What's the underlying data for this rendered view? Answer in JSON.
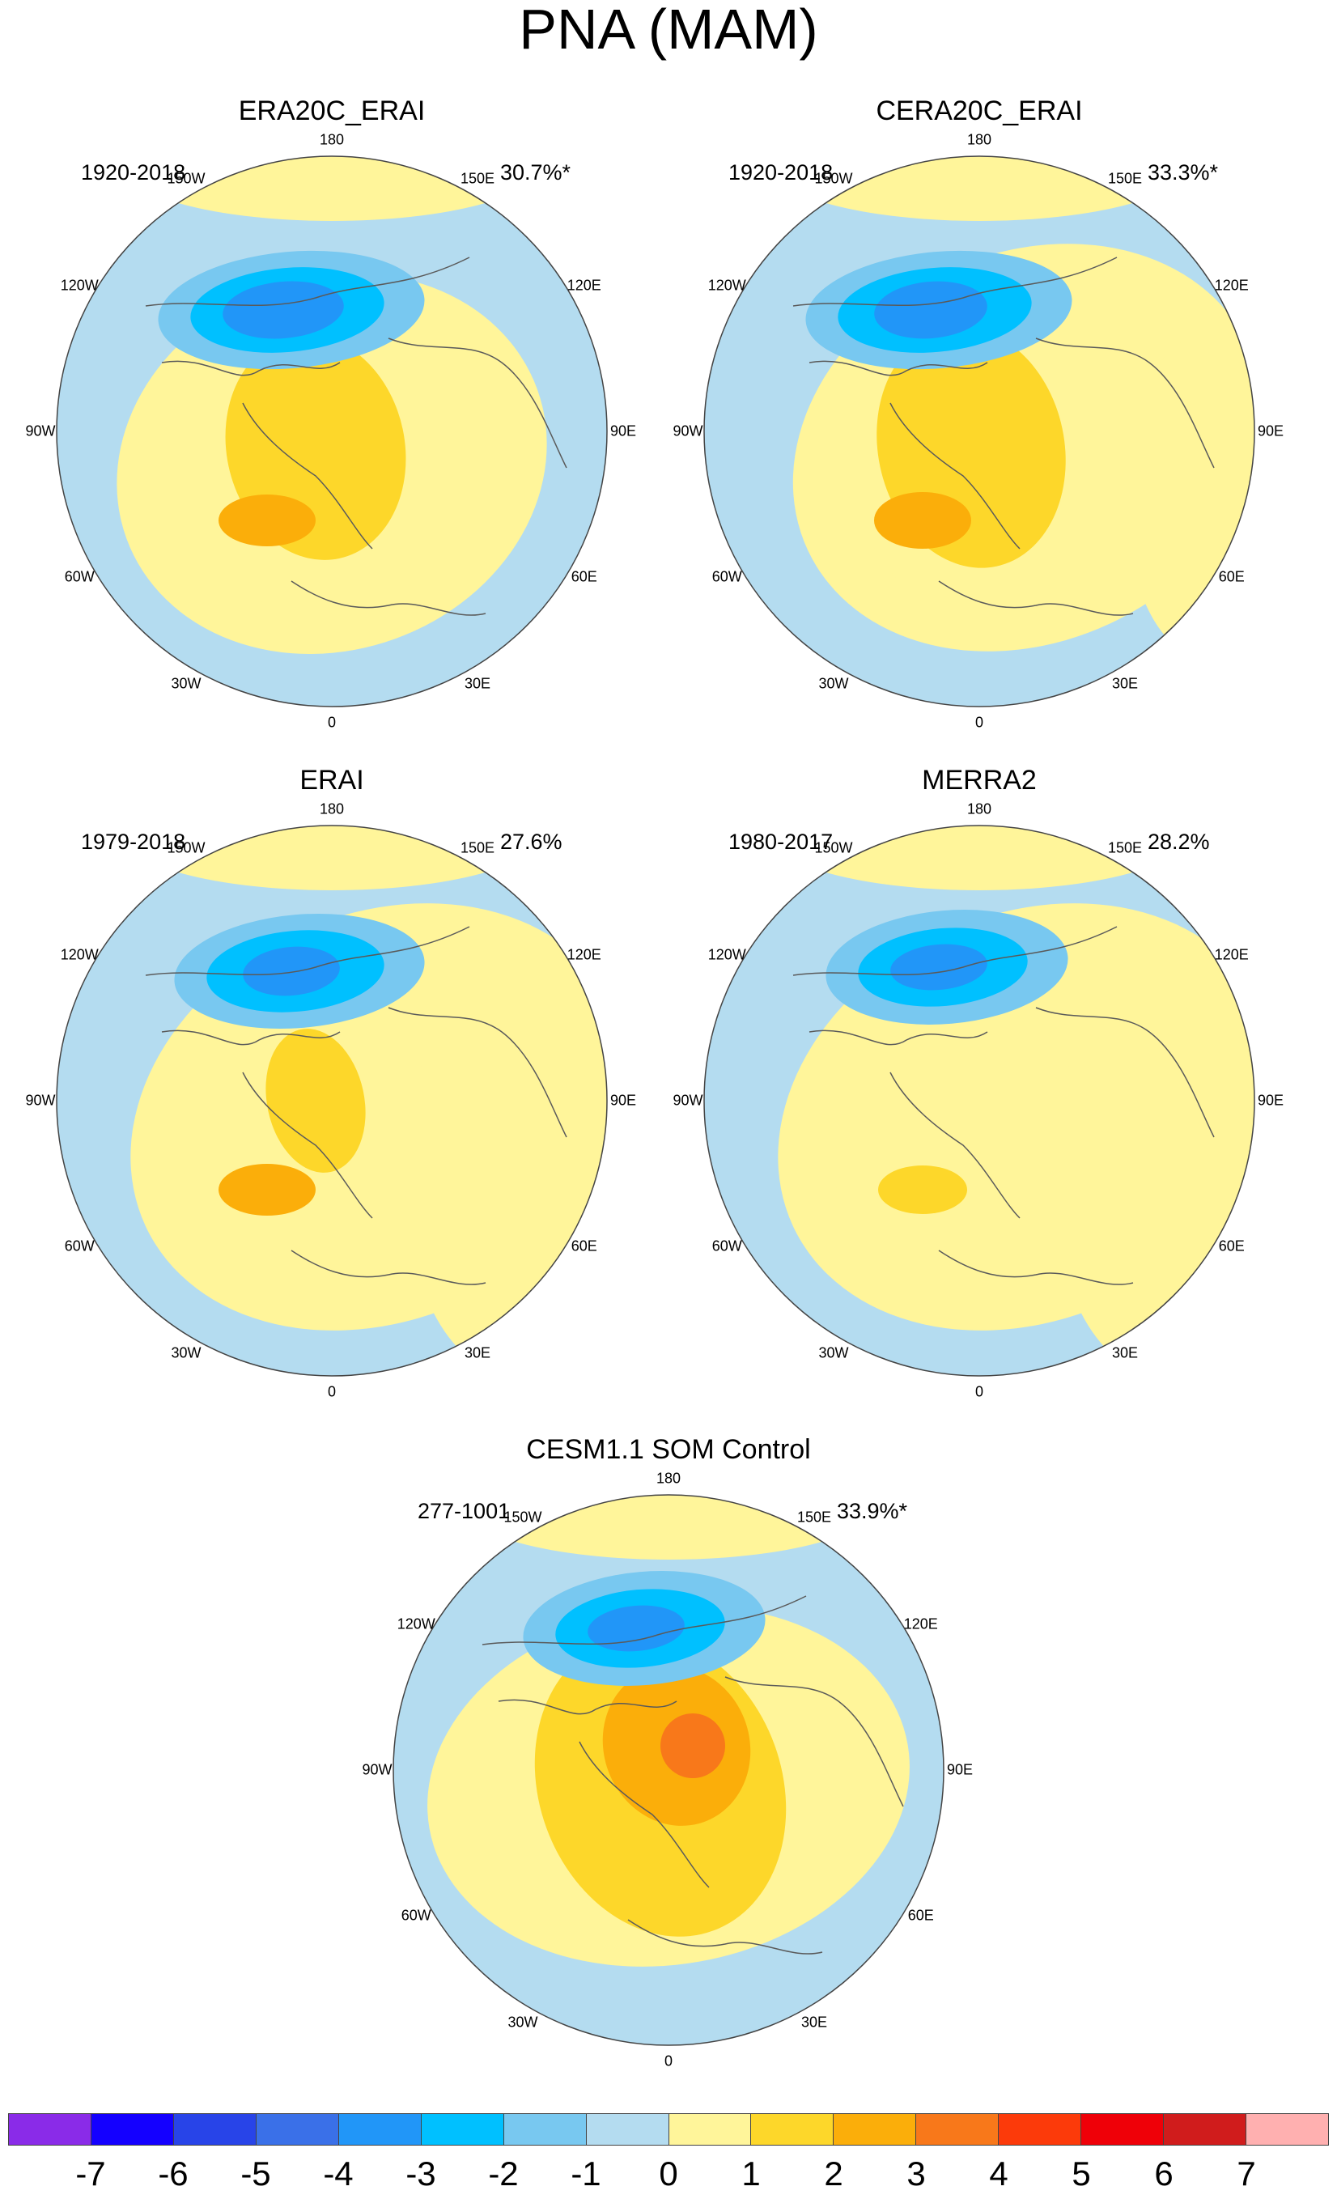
{
  "title": "PNA (MAM)",
  "longitude_labels": [
    "180",
    "150E",
    "120E",
    "90E",
    "60E",
    "30E",
    "0",
    "30W",
    "60W",
    "90W",
    "120W",
    "150W"
  ],
  "panels": [
    {
      "name": "ERA20C_ERAI",
      "period": "1920-2018",
      "variance": "30.7%*"
    },
    {
      "name": "CERA20C_ERAI",
      "period": "1920-2018",
      "variance": "33.3%*"
    },
    {
      "name": "ERAI",
      "period": "1979-2018",
      "variance": "27.6%"
    },
    {
      "name": "MERRA2",
      "period": "1980-2017",
      "variance": "28.2%"
    },
    {
      "name": "CESM1.1 SOM Control",
      "period": "277-1001",
      "variance": "33.9%*"
    }
  ],
  "colorbar": {
    "labels": [
      "-7",
      "-6",
      "-5",
      "-4",
      "-3",
      "-2",
      "-1",
      "0",
      "1",
      "2",
      "3",
      "4",
      "5",
      "6",
      "7"
    ],
    "colors": [
      "#8a2be8",
      "#1400ff",
      "#2844e8",
      "#3a70e8",
      "#2196f8",
      "#00c0ff",
      "#78c8f0",
      "#b4dcf0",
      "#fff59a",
      "#fdd72a",
      "#fbae0a",
      "#f8781a",
      "#fc3a0a",
      "#ef0008",
      "#d01c1c",
      "#ffb0b0"
    ]
  },
  "map_colors": {
    "land_outline": "#5a5a5a",
    "circle_edge": "#444444"
  }
}
